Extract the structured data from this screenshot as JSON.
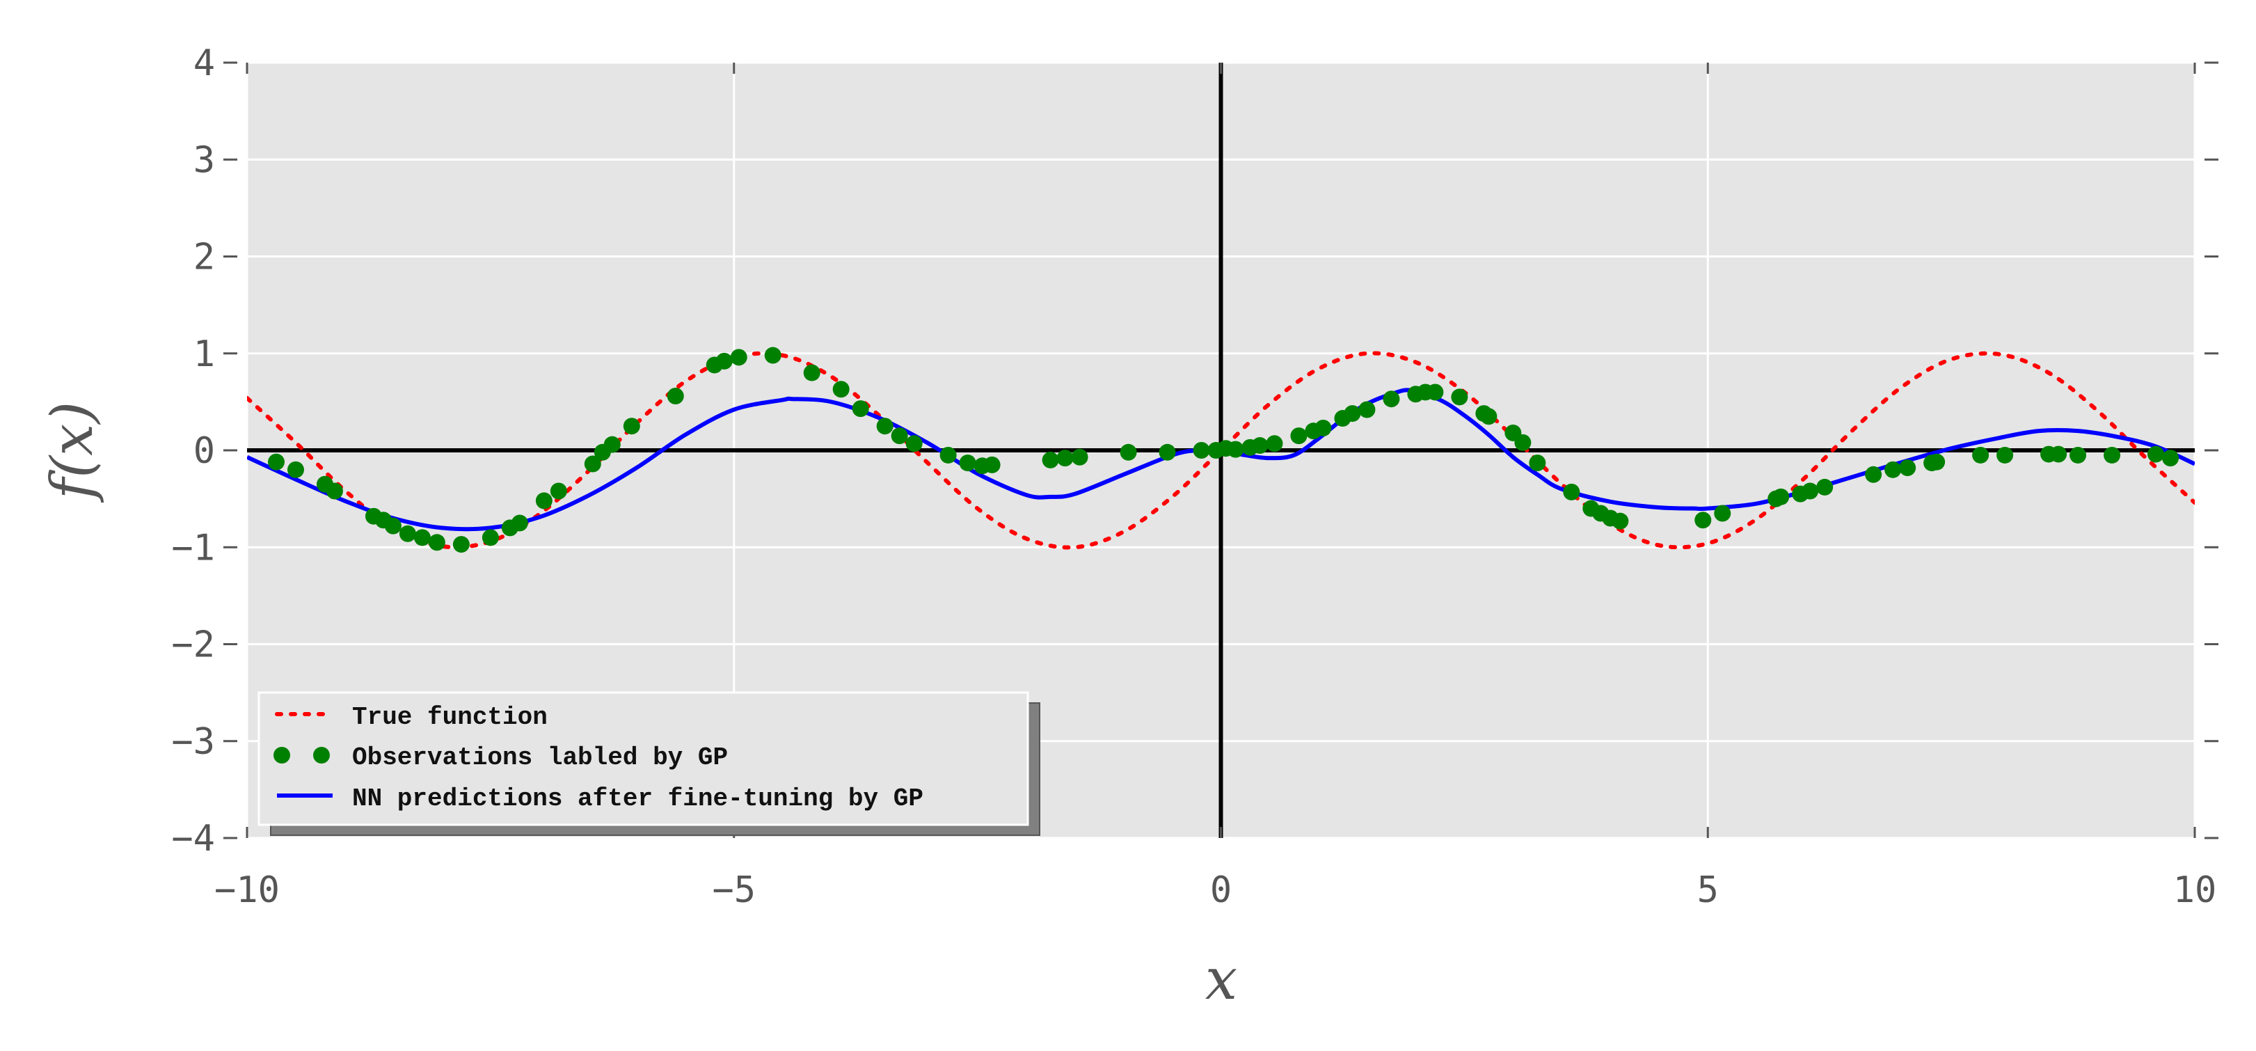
{
  "chart_data": {
    "type": "line",
    "xlabel": "x",
    "ylabel": "f(x)",
    "xlim": [
      -10,
      10
    ],
    "ylim": [
      -4,
      4
    ],
    "x_ticks": [
      -10,
      -5,
      0,
      5,
      10
    ],
    "x_tick_labels": [
      "−10",
      "−5",
      "0",
      "5",
      "10"
    ],
    "y_ticks": [
      -4,
      -3,
      -2,
      -1,
      0,
      1,
      2,
      3,
      4
    ],
    "y_tick_labels": [
      "−4",
      "−3",
      "−2",
      "−1",
      "0",
      "1",
      "2",
      "3",
      "4"
    ],
    "grid": true,
    "legend_position": "lower-left",
    "reference_lines": {
      "x": 0,
      "y": 0
    },
    "series": [
      {
        "name": "True function",
        "style": "dotted",
        "color": "#ff0000",
        "x": [
          -10,
          -9.5,
          -9,
          -8.5,
          -8,
          -7.5,
          -7,
          -6.5,
          -6,
          -5.5,
          -5,
          -4.5,
          -4,
          -3.5,
          -3,
          -2.5,
          -2,
          -1.5,
          -1,
          -0.5,
          0,
          0.5,
          1,
          1.5,
          2,
          2.5,
          3,
          3.5,
          4,
          4.5,
          5,
          5.5,
          6,
          6.5,
          7,
          7.5,
          8,
          8.5,
          9,
          9.5,
          10
        ],
        "y": [
          0.54,
          0.08,
          -0.41,
          -0.8,
          -0.99,
          -0.94,
          -0.66,
          -0.22,
          0.28,
          0.71,
          0.96,
          0.98,
          0.76,
          0.35,
          -0.14,
          -0.6,
          -0.91,
          -1.0,
          -0.84,
          -0.48,
          0.0,
          0.48,
          0.84,
          1.0,
          0.91,
          0.6,
          0.14,
          -0.35,
          -0.76,
          -0.98,
          -0.96,
          -0.71,
          -0.28,
          0.22,
          0.66,
          0.94,
          0.99,
          0.8,
          0.41,
          -0.08,
          -0.54
        ]
      },
      {
        "name": "Observations labled by GP",
        "style": "markers",
        "color": "#008000",
        "x": [
          -9.7,
          -9.5,
          -9.2,
          -9.1,
          -8.7,
          -8.6,
          -8.5,
          -8.35,
          -8.2,
          -8.05,
          -7.8,
          -7.5,
          -7.3,
          -7.2,
          -6.95,
          -6.8,
          -6.45,
          -6.35,
          -6.25,
          -6.05,
          -5.6,
          -5.2,
          -5.1,
          -4.95,
          -4.6,
          -4.2,
          -3.9,
          -3.7,
          -3.45,
          -3.3,
          -3.15,
          -2.8,
          -2.6,
          -2.45,
          -2.35,
          -1.75,
          -1.6,
          -1.45,
          -0.95,
          -0.55,
          -0.2,
          -0.05,
          0.05,
          0.15,
          0.3,
          0.4,
          0.55,
          0.8,
          0.95,
          1.05,
          1.25,
          1.35,
          1.5,
          1.75,
          2.0,
          2.1,
          2.2,
          2.45,
          2.7,
          2.75,
          3.0,
          3.1,
          3.25,
          3.6,
          3.8,
          3.9,
          4.0,
          4.1,
          4.95,
          5.15,
          5.7,
          5.75,
          5.95,
          6.05,
          6.2,
          6.7,
          6.9,
          7.05,
          7.3,
          7.35,
          7.8,
          8.05,
          8.5,
          8.6,
          8.8,
          9.15,
          9.6,
          9.75
        ],
        "y": [
          -0.12,
          -0.2,
          -0.35,
          -0.42,
          -0.68,
          -0.72,
          -0.78,
          -0.86,
          -0.9,
          -0.95,
          -0.97,
          -0.9,
          -0.8,
          -0.75,
          -0.52,
          -0.42,
          -0.14,
          -0.02,
          0.06,
          0.25,
          0.56,
          0.88,
          0.92,
          0.96,
          0.98,
          0.8,
          0.63,
          0.43,
          0.25,
          0.15,
          0.07,
          -0.05,
          -0.13,
          -0.16,
          -0.15,
          -0.1,
          -0.08,
          -0.07,
          -0.02,
          -0.02,
          0.0,
          0.0,
          0.02,
          0.01,
          0.03,
          0.05,
          0.07,
          0.15,
          0.2,
          0.23,
          0.33,
          0.38,
          0.42,
          0.53,
          0.58,
          0.6,
          0.6,
          0.55,
          0.38,
          0.35,
          0.18,
          0.08,
          -0.13,
          -0.43,
          -0.6,
          -0.65,
          -0.7,
          -0.73,
          -0.72,
          -0.65,
          -0.5,
          -0.48,
          -0.45,
          -0.42,
          -0.38,
          -0.25,
          -0.2,
          -0.18,
          -0.13,
          -0.12,
          -0.05,
          -0.05,
          -0.04,
          -0.04,
          -0.05,
          -0.05,
          -0.04,
          -0.08
        ]
      },
      {
        "name": "NN predictions after fine-tuning by GP",
        "style": "solid",
        "color": "#0000ff",
        "x": [
          -10,
          -9.5,
          -9,
          -8.5,
          -8,
          -7.5,
          -7,
          -6.5,
          -6,
          -5.5,
          -5,
          -4.5,
          -4.4,
          -4,
          -3.5,
          -3,
          -2.5,
          -2,
          -1.75,
          -1.5,
          -1,
          -0.5,
          -0.25,
          0,
          0.25,
          0.5,
          0.75,
          1,
          1.25,
          1.5,
          1.75,
          1.95,
          2.25,
          2.5,
          2.75,
          3,
          3.25,
          3.5,
          4,
          4.5,
          4.85,
          5,
          5.5,
          6,
          6.5,
          7,
          7.5,
          8,
          8.4,
          8.8,
          9.2,
          9.6,
          10
        ],
        "y": [
          -0.07,
          -0.3,
          -0.52,
          -0.7,
          -0.8,
          -0.8,
          -0.69,
          -0.47,
          -0.18,
          0.16,
          0.42,
          0.52,
          0.53,
          0.5,
          0.33,
          0.07,
          -0.24,
          -0.46,
          -0.48,
          -0.45,
          -0.25,
          -0.05,
          0.0,
          0.0,
          -0.05,
          -0.08,
          -0.05,
          0.12,
          0.32,
          0.48,
          0.58,
          0.62,
          0.52,
          0.36,
          0.16,
          -0.07,
          -0.25,
          -0.4,
          -0.53,
          -0.59,
          -0.6,
          -0.6,
          -0.55,
          -0.42,
          -0.27,
          -0.12,
          0.02,
          0.13,
          0.2,
          0.2,
          0.14,
          0.04,
          -0.14
        ]
      }
    ]
  }
}
